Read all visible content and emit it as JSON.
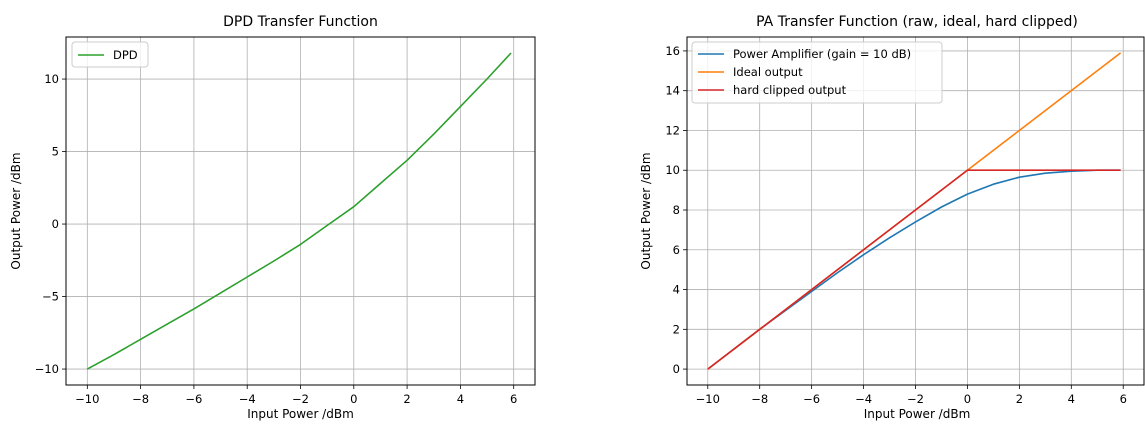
{
  "chart_data": [
    {
      "type": "line",
      "title": "DPD Transfer Function",
      "xlabel": "Input Power /dBm",
      "ylabel": "Output Power /dBm",
      "xlim": [
        -10.8,
        6.8
      ],
      "ylim": [
        -11.1,
        12.9
      ],
      "xticks": [
        -10,
        -8,
        -6,
        -4,
        -2,
        0,
        2,
        4,
        6
      ],
      "yticks": [
        -10,
        -5,
        0,
        5,
        10
      ],
      "grid": true,
      "legend": "top-left",
      "series": [
        {
          "name": "DPD",
          "color": "#2ca02c",
          "x": [
            -10,
            -9,
            -8,
            -7,
            -6,
            -5,
            -4,
            -3,
            -2,
            -1,
            0,
            1,
            2,
            3,
            4,
            5,
            5.9
          ],
          "y": [
            -10,
            -9.0,
            -7.95,
            -6.9,
            -5.85,
            -4.75,
            -3.65,
            -2.55,
            -1.4,
            -0.1,
            1.2,
            2.8,
            4.4,
            6.2,
            8.1,
            10.0,
            11.8
          ]
        }
      ]
    },
    {
      "type": "line",
      "title": "PA Transfer Function (raw, ideal, hard clipped)",
      "xlabel": "Input Power /dBm",
      "ylabel": "Output Power /dBm",
      "xlim": [
        -10.8,
        6.8
      ],
      "ylim": [
        -0.8,
        16.7
      ],
      "xticks": [
        -10,
        -8,
        -6,
        -4,
        -2,
        0,
        2,
        4,
        6
      ],
      "yticks": [
        0,
        2,
        4,
        6,
        8,
        10,
        12,
        14,
        16
      ],
      "grid": true,
      "legend": "top-left",
      "series": [
        {
          "name": "Power Amplifier (gain = 10 dB)",
          "color": "#1f77b4",
          "x": [
            -10,
            -9,
            -8,
            -7,
            -6,
            -5,
            -4,
            -3,
            -2,
            -1,
            0,
            1,
            2,
            3,
            4,
            5,
            5.9
          ],
          "y": [
            0,
            1.0,
            2.0,
            2.95,
            3.9,
            4.85,
            5.75,
            6.6,
            7.4,
            8.15,
            8.8,
            9.3,
            9.65,
            9.85,
            9.95,
            10.0,
            10.0
          ]
        },
        {
          "name": "Ideal output",
          "color": "#ff7f0e",
          "x": [
            -10,
            5.9
          ],
          "y": [
            0,
            15.9
          ]
        },
        {
          "name": "hard clipped output",
          "color": "#d62728",
          "x": [
            -10,
            0,
            5.9
          ],
          "y": [
            0,
            10,
            10
          ]
        }
      ]
    }
  ]
}
